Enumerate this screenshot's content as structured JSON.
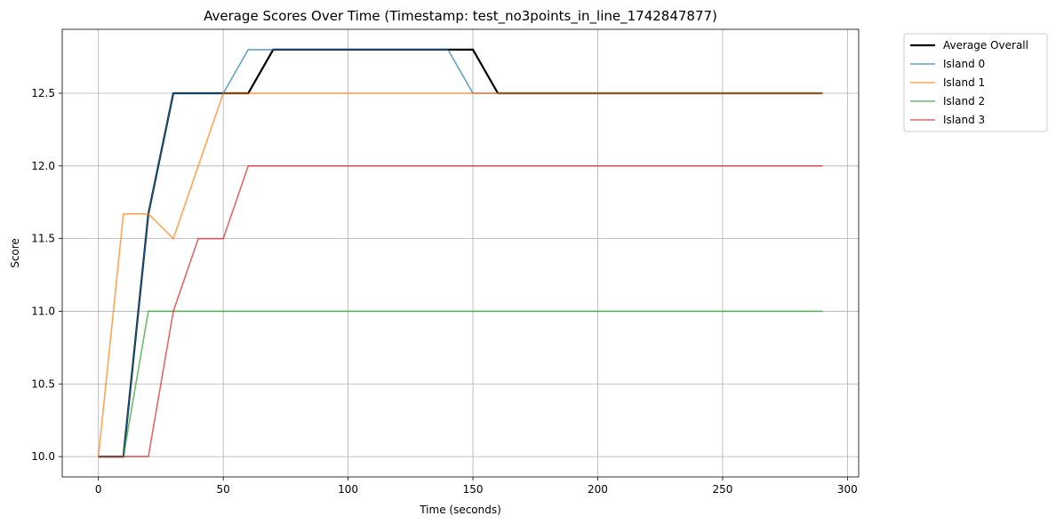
{
  "chart_data": {
    "type": "line",
    "title": "Average Scores Over Time (Timestamp: test_no3points_in_line_1742847877)",
    "xlabel": "Time (seconds)",
    "ylabel": "Score",
    "xlim": [
      -14.5,
      304.5
    ],
    "ylim": [
      9.86,
      12.94
    ],
    "xticks": [
      0,
      50,
      100,
      150,
      200,
      250,
      300
    ],
    "xtick_labels": [
      "0",
      "50",
      "100",
      "150",
      "200",
      "250",
      "300"
    ],
    "yticks": [
      10.0,
      10.5,
      11.0,
      11.5,
      12.0,
      12.5
    ],
    "ytick_labels": [
      "10.0",
      "10.5",
      "11.0",
      "11.5",
      "12.0",
      "12.5"
    ],
    "grid": true,
    "legend_position": "outside top-right",
    "x": [
      0,
      10,
      20,
      30,
      40,
      50,
      60,
      70,
      80,
      90,
      100,
      110,
      120,
      130,
      140,
      150,
      160,
      170,
      180,
      190,
      200,
      210,
      220,
      230,
      240,
      250,
      260,
      270,
      280,
      290
    ],
    "series": [
      {
        "name": "Island 0",
        "color": "#1f77b4",
        "values": [
          10.0,
          10.0,
          11.67,
          12.5,
          12.5,
          12.5,
          12.8,
          12.8,
          12.8,
          12.8,
          12.8,
          12.8,
          12.8,
          12.8,
          12.8,
          12.5,
          12.5,
          12.5,
          12.5,
          12.5,
          12.5,
          12.5,
          12.5,
          12.5,
          12.5,
          12.5,
          12.5,
          12.5,
          12.5,
          12.5
        ]
      },
      {
        "name": "Island 1",
        "color": "#ff7f0e",
        "values": [
          10.0,
          11.67,
          11.67,
          11.5,
          12.0,
          12.5,
          12.5,
          12.5,
          12.5,
          12.5,
          12.5,
          12.5,
          12.5,
          12.5,
          12.5,
          12.5,
          12.5,
          12.5,
          12.5,
          12.5,
          12.5,
          12.5,
          12.5,
          12.5,
          12.5,
          12.5,
          12.5,
          12.5,
          12.5,
          12.5
        ]
      },
      {
        "name": "Island 2",
        "color": "#2ca02c",
        "values": [
          10.0,
          10.0,
          11.0,
          11.0,
          11.0,
          11.0,
          11.0,
          11.0,
          11.0,
          11.0,
          11.0,
          11.0,
          11.0,
          11.0,
          11.0,
          11.0,
          11.0,
          11.0,
          11.0,
          11.0,
          11.0,
          11.0,
          11.0,
          11.0,
          11.0,
          11.0,
          11.0,
          11.0,
          11.0,
          11.0
        ]
      },
      {
        "name": "Island 3",
        "color": "#d62728",
        "values": [
          10.0,
          10.0,
          10.0,
          11.0,
          11.5,
          11.5,
          12.0,
          12.0,
          12.0,
          12.0,
          12.0,
          12.0,
          12.0,
          12.0,
          12.0,
          12.0,
          12.0,
          12.0,
          12.0,
          12.0,
          12.0,
          12.0,
          12.0,
          12.0,
          12.0,
          12.0,
          12.0,
          12.0,
          12.0,
          12.0
        ]
      }
    ],
    "average": {
      "name": "Average Overall",
      "color": "#000000",
      "values": [
        10.0,
        10.0,
        11.67,
        12.5,
        12.5,
        12.5,
        12.5,
        12.8,
        12.8,
        12.8,
        12.8,
        12.8,
        12.8,
        12.8,
        12.8,
        12.8,
        12.5,
        12.5,
        12.5,
        12.5,
        12.5,
        12.5,
        12.5,
        12.5,
        12.5,
        12.5,
        12.5,
        12.5,
        12.5,
        12.5
      ]
    }
  }
}
